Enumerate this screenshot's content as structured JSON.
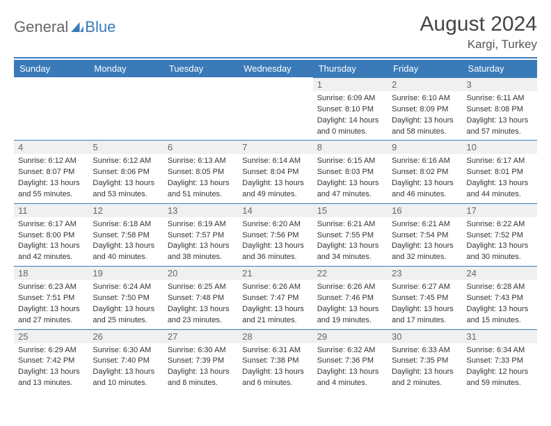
{
  "brand": {
    "part1": "General",
    "part2": "Blue"
  },
  "title": "August 2024",
  "location": "Kargi, Turkey",
  "colors": {
    "accent": "#3a7ab8",
    "header_bg": "#3a7ab8",
    "datebar_bg": "#f0f0f0",
    "text": "#333333",
    "muted": "#666666",
    "white": "#ffffff"
  },
  "weekdays": [
    "Sunday",
    "Monday",
    "Tuesday",
    "Wednesday",
    "Thursday",
    "Friday",
    "Saturday"
  ],
  "weeks": [
    [
      null,
      null,
      null,
      null,
      {
        "d": "1",
        "sr": "Sunrise: 6:09 AM",
        "ss": "Sunset: 8:10 PM",
        "dl1": "Daylight: 14 hours",
        "dl2": "and 0 minutes."
      },
      {
        "d": "2",
        "sr": "Sunrise: 6:10 AM",
        "ss": "Sunset: 8:09 PM",
        "dl1": "Daylight: 13 hours",
        "dl2": "and 58 minutes."
      },
      {
        "d": "3",
        "sr": "Sunrise: 6:11 AM",
        "ss": "Sunset: 8:08 PM",
        "dl1": "Daylight: 13 hours",
        "dl2": "and 57 minutes."
      }
    ],
    [
      {
        "d": "4",
        "sr": "Sunrise: 6:12 AM",
        "ss": "Sunset: 8:07 PM",
        "dl1": "Daylight: 13 hours",
        "dl2": "and 55 minutes."
      },
      {
        "d": "5",
        "sr": "Sunrise: 6:12 AM",
        "ss": "Sunset: 8:06 PM",
        "dl1": "Daylight: 13 hours",
        "dl2": "and 53 minutes."
      },
      {
        "d": "6",
        "sr": "Sunrise: 6:13 AM",
        "ss": "Sunset: 8:05 PM",
        "dl1": "Daylight: 13 hours",
        "dl2": "and 51 minutes."
      },
      {
        "d": "7",
        "sr": "Sunrise: 6:14 AM",
        "ss": "Sunset: 8:04 PM",
        "dl1": "Daylight: 13 hours",
        "dl2": "and 49 minutes."
      },
      {
        "d": "8",
        "sr": "Sunrise: 6:15 AM",
        "ss": "Sunset: 8:03 PM",
        "dl1": "Daylight: 13 hours",
        "dl2": "and 47 minutes."
      },
      {
        "d": "9",
        "sr": "Sunrise: 6:16 AM",
        "ss": "Sunset: 8:02 PM",
        "dl1": "Daylight: 13 hours",
        "dl2": "and 46 minutes."
      },
      {
        "d": "10",
        "sr": "Sunrise: 6:17 AM",
        "ss": "Sunset: 8:01 PM",
        "dl1": "Daylight: 13 hours",
        "dl2": "and 44 minutes."
      }
    ],
    [
      {
        "d": "11",
        "sr": "Sunrise: 6:17 AM",
        "ss": "Sunset: 8:00 PM",
        "dl1": "Daylight: 13 hours",
        "dl2": "and 42 minutes."
      },
      {
        "d": "12",
        "sr": "Sunrise: 6:18 AM",
        "ss": "Sunset: 7:58 PM",
        "dl1": "Daylight: 13 hours",
        "dl2": "and 40 minutes."
      },
      {
        "d": "13",
        "sr": "Sunrise: 6:19 AM",
        "ss": "Sunset: 7:57 PM",
        "dl1": "Daylight: 13 hours",
        "dl2": "and 38 minutes."
      },
      {
        "d": "14",
        "sr": "Sunrise: 6:20 AM",
        "ss": "Sunset: 7:56 PM",
        "dl1": "Daylight: 13 hours",
        "dl2": "and 36 minutes."
      },
      {
        "d": "15",
        "sr": "Sunrise: 6:21 AM",
        "ss": "Sunset: 7:55 PM",
        "dl1": "Daylight: 13 hours",
        "dl2": "and 34 minutes."
      },
      {
        "d": "16",
        "sr": "Sunrise: 6:21 AM",
        "ss": "Sunset: 7:54 PM",
        "dl1": "Daylight: 13 hours",
        "dl2": "and 32 minutes."
      },
      {
        "d": "17",
        "sr": "Sunrise: 6:22 AM",
        "ss": "Sunset: 7:52 PM",
        "dl1": "Daylight: 13 hours",
        "dl2": "and 30 minutes."
      }
    ],
    [
      {
        "d": "18",
        "sr": "Sunrise: 6:23 AM",
        "ss": "Sunset: 7:51 PM",
        "dl1": "Daylight: 13 hours",
        "dl2": "and 27 minutes."
      },
      {
        "d": "19",
        "sr": "Sunrise: 6:24 AM",
        "ss": "Sunset: 7:50 PM",
        "dl1": "Daylight: 13 hours",
        "dl2": "and 25 minutes."
      },
      {
        "d": "20",
        "sr": "Sunrise: 6:25 AM",
        "ss": "Sunset: 7:48 PM",
        "dl1": "Daylight: 13 hours",
        "dl2": "and 23 minutes."
      },
      {
        "d": "21",
        "sr": "Sunrise: 6:26 AM",
        "ss": "Sunset: 7:47 PM",
        "dl1": "Daylight: 13 hours",
        "dl2": "and 21 minutes."
      },
      {
        "d": "22",
        "sr": "Sunrise: 6:26 AM",
        "ss": "Sunset: 7:46 PM",
        "dl1": "Daylight: 13 hours",
        "dl2": "and 19 minutes."
      },
      {
        "d": "23",
        "sr": "Sunrise: 6:27 AM",
        "ss": "Sunset: 7:45 PM",
        "dl1": "Daylight: 13 hours",
        "dl2": "and 17 minutes."
      },
      {
        "d": "24",
        "sr": "Sunrise: 6:28 AM",
        "ss": "Sunset: 7:43 PM",
        "dl1": "Daylight: 13 hours",
        "dl2": "and 15 minutes."
      }
    ],
    [
      {
        "d": "25",
        "sr": "Sunrise: 6:29 AM",
        "ss": "Sunset: 7:42 PM",
        "dl1": "Daylight: 13 hours",
        "dl2": "and 13 minutes."
      },
      {
        "d": "26",
        "sr": "Sunrise: 6:30 AM",
        "ss": "Sunset: 7:40 PM",
        "dl1": "Daylight: 13 hours",
        "dl2": "and 10 minutes."
      },
      {
        "d": "27",
        "sr": "Sunrise: 6:30 AM",
        "ss": "Sunset: 7:39 PM",
        "dl1": "Daylight: 13 hours",
        "dl2": "and 8 minutes."
      },
      {
        "d": "28",
        "sr": "Sunrise: 6:31 AM",
        "ss": "Sunset: 7:38 PM",
        "dl1": "Daylight: 13 hours",
        "dl2": "and 6 minutes."
      },
      {
        "d": "29",
        "sr": "Sunrise: 6:32 AM",
        "ss": "Sunset: 7:36 PM",
        "dl1": "Daylight: 13 hours",
        "dl2": "and 4 minutes."
      },
      {
        "d": "30",
        "sr": "Sunrise: 6:33 AM",
        "ss": "Sunset: 7:35 PM",
        "dl1": "Daylight: 13 hours",
        "dl2": "and 2 minutes."
      },
      {
        "d": "31",
        "sr": "Sunrise: 6:34 AM",
        "ss": "Sunset: 7:33 PM",
        "dl1": "Daylight: 12 hours",
        "dl2": "and 59 minutes."
      }
    ]
  ]
}
